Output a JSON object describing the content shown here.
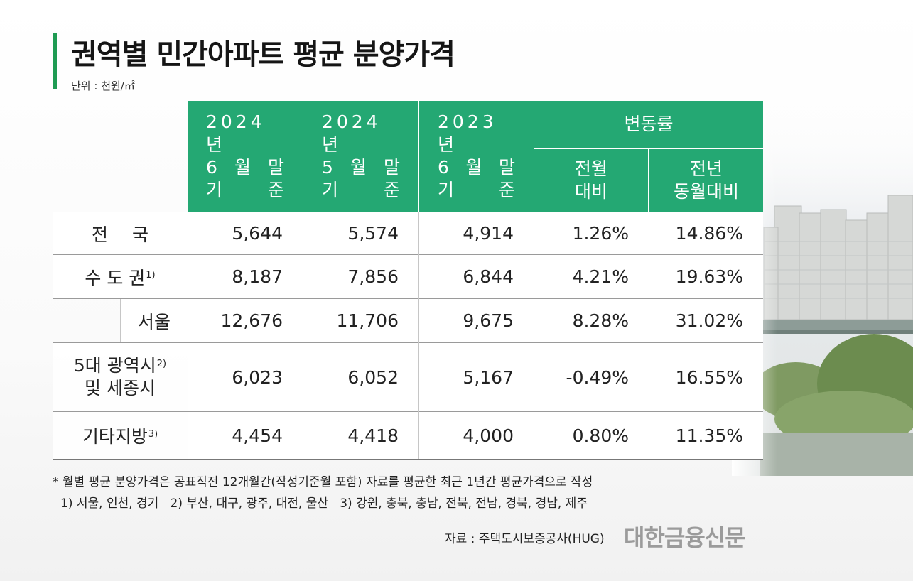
{
  "title": "권역별 민간아파트 평균 분양가격",
  "unit": "단위 : 천원/㎡",
  "columns": {
    "c2024_06": {
      "year": "2024년",
      "line2a": "6",
      "line2b": "월",
      "line2c": "말",
      "line3a": "기",
      "line3b": "준"
    },
    "c2024_05": {
      "year": "2024년",
      "line2a": "5",
      "line2b": "월",
      "line2c": "말",
      "line3a": "기",
      "line3b": "준"
    },
    "c2023_06": {
      "year": "2023년",
      "line2a": "6",
      "line2b": "월",
      "line2c": "말",
      "line3a": "기",
      "line3b": "준"
    },
    "change": {
      "label": "변동률"
    },
    "mom": {
      "line1": "전월",
      "line2": "대비"
    },
    "yoy": {
      "line1": "전년",
      "line2": "동월대비"
    }
  },
  "rows": [
    {
      "label_a": "전",
      "label_b": "국",
      "v2024_06": "5,644",
      "v2024_05": "5,574",
      "v2023_06": "4,914",
      "mom": "1.26%",
      "yoy": "14.86%"
    },
    {
      "label": "수 도 권",
      "sup": "1)",
      "v2024_06": "8,187",
      "v2024_05": "7,856",
      "v2023_06": "6,844",
      "mom": "4.21%",
      "yoy": "19.63%"
    },
    {
      "label": "서울",
      "v2024_06": "12,676",
      "v2024_05": "11,706",
      "v2023_06": "9,675",
      "mom": "8.28%",
      "yoy": "31.02%"
    },
    {
      "label_line1": "5대 광역시",
      "sup": "2)",
      "label_line2": "및 세종시",
      "v2024_06": "6,023",
      "v2024_05": "6,052",
      "v2023_06": "5,167",
      "mom": "-0.49%",
      "yoy": "16.55%"
    },
    {
      "label": "기타지방",
      "sup": "3)",
      "v2024_06": "4,454",
      "v2024_05": "4,418",
      "v2023_06": "4,000",
      "mom": "0.80%",
      "yoy": "11.35%"
    }
  ],
  "notes": {
    "note1": "* 월별 평균 분양가격은 공표직전 12개월간(작성기준월 포함) 자료를 평균한 최근 1년간 평균가격으로 작성",
    "note2": "1) 서울, 인천, 경기   2) 부산, 대구, 광주, 대전, 울산   3) 강원, 충북, 충남, 전북, 전남, 경북, 경남, 제주"
  },
  "source": "자료 : 주택도시보증공사(HUG)",
  "brand": "대한금융신문",
  "colors": {
    "accent": "#24a873",
    "title_bar": "#1f9b53",
    "brand": "#9b9b9b"
  }
}
